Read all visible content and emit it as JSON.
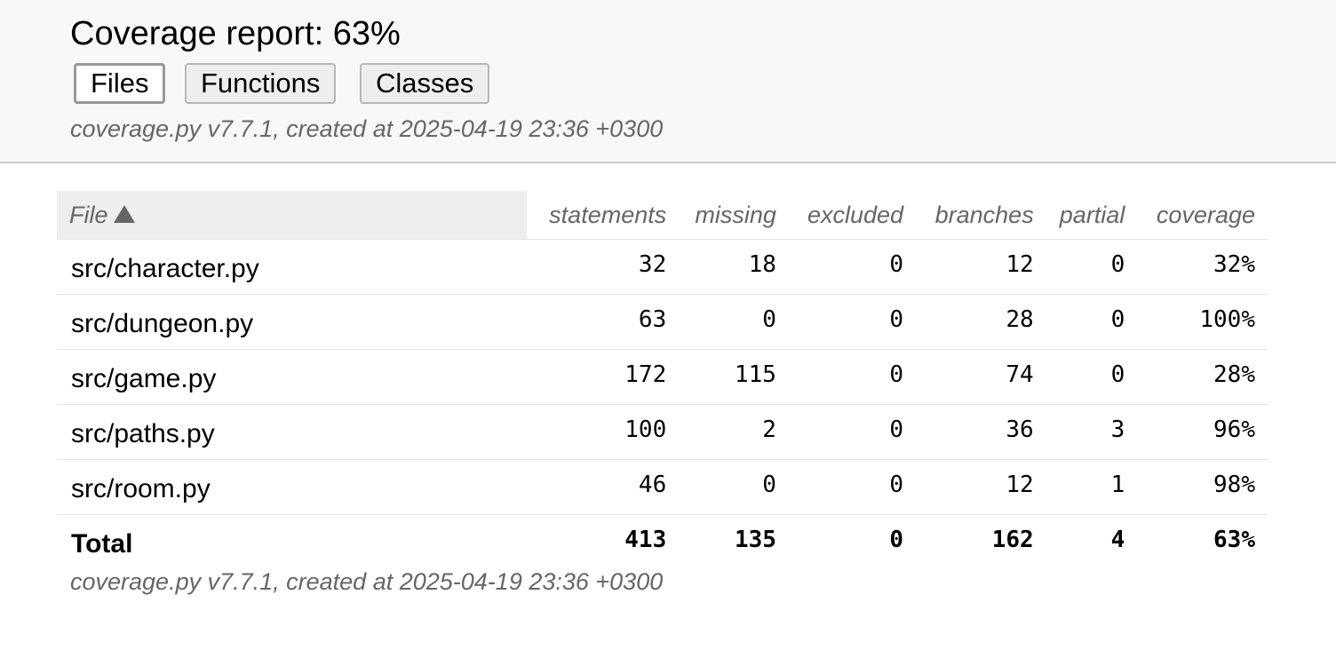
{
  "header": {
    "title": "Coverage report: 63%",
    "tabs": [
      {
        "label": "Files",
        "active": true
      },
      {
        "label": "Functions",
        "active": false
      },
      {
        "label": "Classes",
        "active": false
      }
    ],
    "created": "coverage.py v7.7.1, created at 2025-04-19 23:36 +0300"
  },
  "table": {
    "columns": [
      "File",
      "statements",
      "missing",
      "excluded",
      "branches",
      "partial",
      "coverage"
    ],
    "sort_icon": "triangle-up-icon",
    "rows": [
      {
        "file": "src/character.py",
        "statements": "32",
        "missing": "18",
        "excluded": "0",
        "branches": "12",
        "partial": "0",
        "coverage": "32%"
      },
      {
        "file": "src/dungeon.py",
        "statements": "63",
        "missing": "0",
        "excluded": "0",
        "branches": "28",
        "partial": "0",
        "coverage": "100%"
      },
      {
        "file": "src/game.py",
        "statements": "172",
        "missing": "115",
        "excluded": "0",
        "branches": "74",
        "partial": "0",
        "coverage": "28%"
      },
      {
        "file": "src/paths.py",
        "statements": "100",
        "missing": "2",
        "excluded": "0",
        "branches": "36",
        "partial": "3",
        "coverage": "96%"
      },
      {
        "file": "src/room.py",
        "statements": "46",
        "missing": "0",
        "excluded": "0",
        "branches": "12",
        "partial": "1",
        "coverage": "98%"
      }
    ],
    "total": {
      "file": "Total",
      "statements": "413",
      "missing": "135",
      "excluded": "0",
      "branches": "162",
      "partial": "4",
      "coverage": "63%"
    }
  },
  "footer": {
    "created": "coverage.py v7.7.1, created at 2025-04-19 23:36 +0300"
  }
}
